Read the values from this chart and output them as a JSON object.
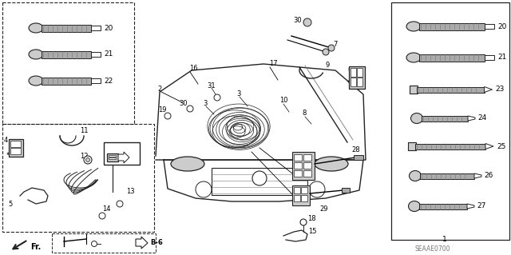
{
  "bg_color": "#ffffff",
  "line_color": "#222222",
  "gray_color": "#777777",
  "light_gray": "#cccccc",
  "mid_gray": "#aaaaaa",
  "diagram_code": "SEAAE0700",
  "part_box_label": "1"
}
